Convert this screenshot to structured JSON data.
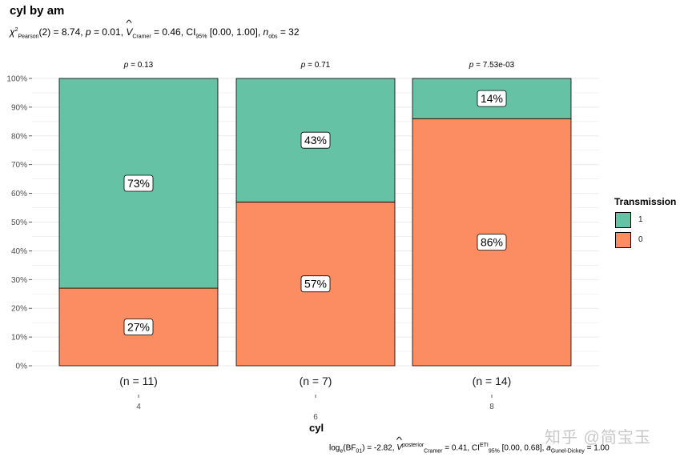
{
  "title": "cyl by am",
  "subtitle": {
    "stat_label": "χ",
    "stat_sup": "2",
    "stat_sub": "Pearson",
    "df_value": "(2) = 8.74,",
    "p_label": "p",
    "p_value": "= 0.01,",
    "effect_label": "V",
    "effect_sub": "Cramer",
    "effect_value": "= 0.46, CI",
    "ci_sub": "95%",
    "ci_value": "[0.00, 1.00],",
    "n_label": "n",
    "n_sub": "obs",
    "n_value": "= 32"
  },
  "caption": {
    "bf_label": "log",
    "bf_sub": "e",
    "bf_mid": "(BF",
    "bf_sub2": "01",
    "bf_value": ") = -2.82,",
    "post_label": "V",
    "post_sup": "posterior",
    "post_sub": "Cramer",
    "post_value": "= 0.41, CI",
    "ci_sup": "ETI",
    "ci_sub": "95%",
    "ci_value": "[0.00, 0.68],",
    "a_label": "a",
    "a_sub": "Gunel-Dickey",
    "a_value": "= 1.00"
  },
  "watermark": "知乎 @简宝玉",
  "colors": {
    "transmission_1": "#66c2a5",
    "transmission_0": "#fc8d62",
    "grid": "#ebebeb"
  },
  "chart_data": {
    "type": "bar",
    "stacked": true,
    "title": "cyl by am",
    "xlabel": "cyl",
    "ylabel": "",
    "ylim": [
      0,
      100
    ],
    "y_ticks": [
      "0%",
      "10%",
      "20%",
      "30%",
      "40%",
      "50%",
      "60%",
      "70%",
      "80%",
      "90%",
      "100%"
    ],
    "categories": [
      "4",
      "6",
      "8"
    ],
    "counts": [
      "(n = 11)",
      "(n = 7)",
      "(n = 14)"
    ],
    "p_values": [
      "0.13",
      "0.71",
      "7.53e-03"
    ],
    "series": [
      {
        "name": "0",
        "values": [
          27,
          57,
          86
        ],
        "labels": [
          "27%",
          "57%",
          "86%"
        ],
        "color": "#fc8d62"
      },
      {
        "name": "1",
        "values": [
          73,
          43,
          14
        ],
        "labels": [
          "73%",
          "43%",
          "14%"
        ],
        "color": "#66c2a5"
      }
    ],
    "legend": {
      "title": "Transmission",
      "entries": [
        "1",
        "0"
      ],
      "position": "right"
    }
  }
}
